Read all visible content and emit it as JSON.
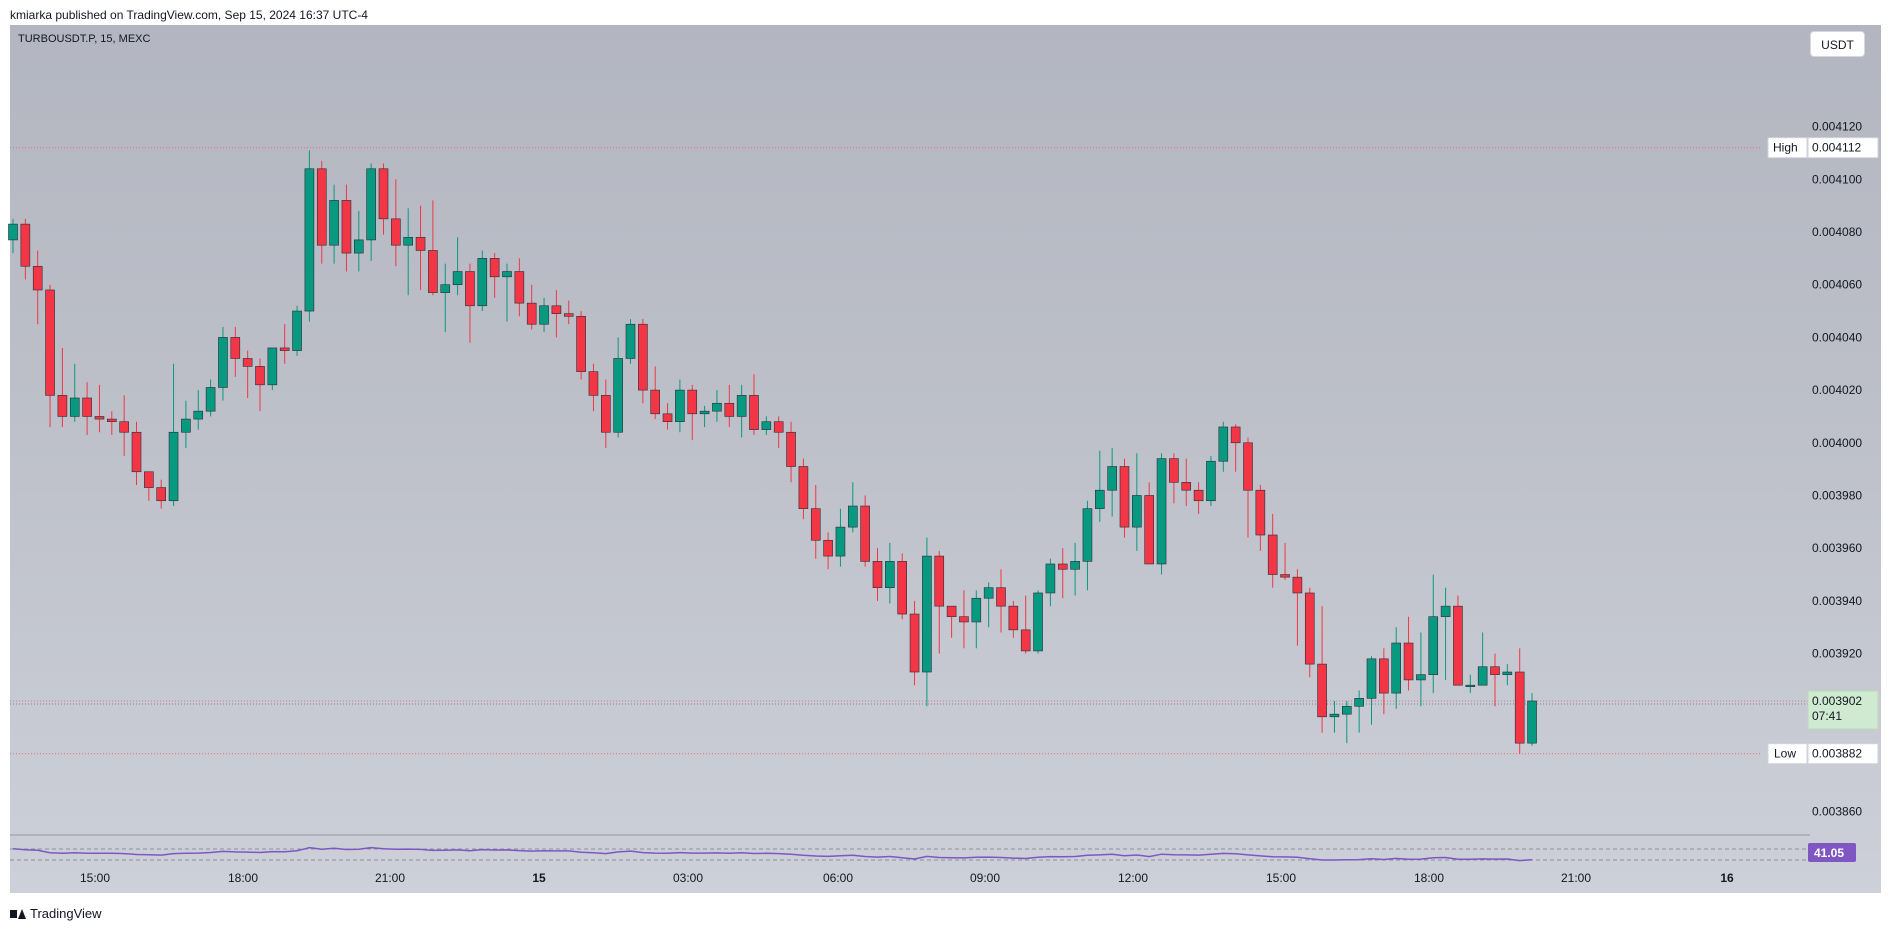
{
  "header": {
    "published": "kmiarka published on TradingView.com, Sep 15, 2024 16:37 UTC-4"
  },
  "symbol": {
    "label": "TURBOUSDT.P, 15, MEXC"
  },
  "currency": {
    "label": "USDT"
  },
  "colors": {
    "up": "#089981",
    "down": "#f23645",
    "rsi": "#7e57c2"
  },
  "footer": {
    "brand": "TradingView"
  },
  "chart_data": {
    "type": "candlestick",
    "interval": "15",
    "x_ticks": [
      "15:00",
      "18:00",
      "21:00",
      "15",
      "03:00",
      "06:00",
      "09:00",
      "12:00",
      "15:00",
      "18:00",
      "21:00",
      "16"
    ],
    "y_ticks": [
      "0.004120",
      "0.004100",
      "0.004080",
      "0.004060",
      "0.004040",
      "0.004020",
      "0.004000",
      "0.003980",
      "0.003960",
      "0.003940",
      "0.003920",
      "0.003860"
    ],
    "ylim": [
      0.00385,
      0.004132
    ],
    "high": {
      "label": "High",
      "value": "0.004112"
    },
    "low": {
      "label": "Low",
      "value": "0.003882"
    },
    "last": {
      "value": "0.003902",
      "countdown": "07:41"
    },
    "rsi": {
      "value": "41.05"
    },
    "candles": [
      [
        0.004077,
        0.004083,
        0.004085,
        0.004072
      ],
      [
        0.004083,
        0.004067,
        0.004085,
        0.004062
      ],
      [
        0.004067,
        0.004058,
        0.004073,
        0.004045
      ],
      [
        0.004058,
        0.004018,
        0.00406,
        0.004006
      ],
      [
        0.004018,
        0.00401,
        0.004036,
        0.004006
      ],
      [
        0.00401,
        0.004017,
        0.00403,
        0.004008
      ],
      [
        0.004017,
        0.00401,
        0.004023,
        0.004003
      ],
      [
        0.00401,
        0.004009,
        0.004022,
        0.004004
      ],
      [
        0.004009,
        0.004008,
        0.004012,
        0.004003
      ],
      [
        0.004008,
        0.004004,
        0.004018,
        0.003995
      ],
      [
        0.004004,
        0.003989,
        0.004008,
        0.003984
      ],
      [
        0.003989,
        0.003983,
        0.003988,
        0.003978
      ],
      [
        0.003983,
        0.003978,
        0.003986,
        0.003975
      ],
      [
        0.003978,
        0.004004,
        0.00403,
        0.003976
      ],
      [
        0.004004,
        0.004009,
        0.004016,
        0.003998
      ],
      [
        0.004009,
        0.004012,
        0.00402,
        0.004005
      ],
      [
        0.004012,
        0.004021,
        0.004024,
        0.00401
      ],
      [
        0.004021,
        0.00404,
        0.004044,
        0.004016
      ],
      [
        0.00404,
        0.004032,
        0.004044,
        0.004025
      ],
      [
        0.004032,
        0.004029,
        0.004035,
        0.004017
      ],
      [
        0.004029,
        0.004022,
        0.004032,
        0.004012
      ],
      [
        0.004022,
        0.004036,
        0.004036,
        0.00402
      ],
      [
        0.004036,
        0.004035,
        0.004045,
        0.00403
      ],
      [
        0.004035,
        0.00405,
        0.004052,
        0.004033
      ],
      [
        0.00405,
        0.004104,
        0.004111,
        0.004046
      ],
      [
        0.004104,
        0.004075,
        0.004107,
        0.004068
      ],
      [
        0.004075,
        0.004092,
        0.004098,
        0.004068
      ],
      [
        0.004092,
        0.004072,
        0.004098,
        0.004065
      ],
      [
        0.004072,
        0.004077,
        0.004088,
        0.004065
      ],
      [
        0.004077,
        0.004104,
        0.004106,
        0.004069
      ],
      [
        0.004104,
        0.004085,
        0.004106,
        0.004079
      ],
      [
        0.004085,
        0.004075,
        0.0041,
        0.004067
      ],
      [
        0.004075,
        0.004078,
        0.004089,
        0.004056
      ],
      [
        0.004078,
        0.004073,
        0.00409,
        0.004058
      ],
      [
        0.004073,
        0.004057,
        0.004092,
        0.004056
      ],
      [
        0.004057,
        0.00406,
        0.004068,
        0.004042
      ],
      [
        0.00406,
        0.004065,
        0.004078,
        0.004056
      ],
      [
        0.004065,
        0.004052,
        0.004068,
        0.004038
      ],
      [
        0.004052,
        0.00407,
        0.004073,
        0.00405
      ],
      [
        0.00407,
        0.004063,
        0.004072,
        0.004055
      ],
      [
        0.004063,
        0.004065,
        0.004068,
        0.004046
      ],
      [
        0.004065,
        0.004053,
        0.00407,
        0.004048
      ],
      [
        0.004053,
        0.004045,
        0.00406,
        0.004043
      ],
      [
        0.004045,
        0.004052,
        0.004055,
        0.004042
      ],
      [
        0.004052,
        0.004049,
        0.004058,
        0.00404
      ],
      [
        0.004049,
        0.004048,
        0.004054,
        0.004045
      ],
      [
        0.004048,
        0.004027,
        0.00405,
        0.004024
      ],
      [
        0.004027,
        0.004018,
        0.00403,
        0.004012
      ],
      [
        0.004018,
        0.004004,
        0.004024,
        0.003998
      ],
      [
        0.004004,
        0.004032,
        0.00404,
        0.004002
      ],
      [
        0.004032,
        0.004045,
        0.004047,
        0.00403
      ],
      [
        0.004045,
        0.00402,
        0.004047,
        0.004015
      ],
      [
        0.00402,
        0.004011,
        0.004029,
        0.004009
      ],
      [
        0.004011,
        0.004008,
        0.004015,
        0.004005
      ],
      [
        0.004008,
        0.00402,
        0.004024,
        0.004004
      ],
      [
        0.00402,
        0.004011,
        0.004022,
        0.004001
      ],
      [
        0.004011,
        0.004012,
        0.004014,
        0.004006
      ],
      [
        0.004012,
        0.004015,
        0.00402,
        0.004008
      ],
      [
        0.004015,
        0.00401,
        0.004022,
        0.004006
      ],
      [
        0.00401,
        0.004018,
        0.004022,
        0.004002
      ],
      [
        0.004018,
        0.004005,
        0.004026,
        0.004003
      ],
      [
        0.004005,
        0.004008,
        0.00401,
        0.004003
      ],
      [
        0.004008,
        0.004004,
        0.00401,
        0.003998
      ],
      [
        0.004004,
        0.003991,
        0.004008,
        0.003985
      ],
      [
        0.003991,
        0.003975,
        0.003994,
        0.003971
      ],
      [
        0.003975,
        0.003963,
        0.003984,
        0.003956
      ],
      [
        0.003963,
        0.003957,
        0.003966,
        0.003952
      ],
      [
        0.003957,
        0.003968,
        0.003975,
        0.003953
      ],
      [
        0.003968,
        0.003976,
        0.003985,
        0.003966
      ],
      [
        0.003976,
        0.003955,
        0.00398,
        0.003953
      ],
      [
        0.003955,
        0.003945,
        0.00396,
        0.00394
      ],
      [
        0.003945,
        0.003955,
        0.003962,
        0.003939
      ],
      [
        0.003955,
        0.003935,
        0.003958,
        0.003933
      ],
      [
        0.003935,
        0.003913,
        0.00394,
        0.003908
      ],
      [
        0.003913,
        0.003957,
        0.003964,
        0.0039
      ],
      [
        0.003957,
        0.003938,
        0.003959,
        0.00392
      ],
      [
        0.003938,
        0.003934,
        0.003938,
        0.003926
      ],
      [
        0.003934,
        0.003932,
        0.003944,
        0.003922
      ],
      [
        0.003932,
        0.003941,
        0.003944,
        0.003922
      ],
      [
        0.003941,
        0.003945,
        0.003947,
        0.00393
      ],
      [
        0.003945,
        0.003938,
        0.003952,
        0.003928
      ],
      [
        0.003938,
        0.003929,
        0.00394,
        0.003926
      ],
      [
        0.003929,
        0.003921,
        0.003942,
        0.00392
      ],
      [
        0.003921,
        0.003943,
        0.003944,
        0.00392
      ],
      [
        0.003943,
        0.003954,
        0.003956,
        0.003938
      ],
      [
        0.003954,
        0.003952,
        0.00396,
        0.003941
      ],
      [
        0.003952,
        0.003955,
        0.003962,
        0.003942
      ],
      [
        0.003955,
        0.003975,
        0.003978,
        0.003944
      ],
      [
        0.003975,
        0.003982,
        0.003997,
        0.00397
      ],
      [
        0.003982,
        0.003991,
        0.003998,
        0.003972
      ],
      [
        0.003991,
        0.003968,
        0.003994,
        0.003964
      ],
      [
        0.003968,
        0.00398,
        0.003996,
        0.003959
      ],
      [
        0.00398,
        0.003954,
        0.003985,
        0.003956
      ],
      [
        0.003954,
        0.003994,
        0.003996,
        0.00395
      ],
      [
        0.003994,
        0.003985,
        0.003996,
        0.003977
      ],
      [
        0.003985,
        0.003982,
        0.003994,
        0.003976
      ],
      [
        0.003982,
        0.003978,
        0.003985,
        0.003973
      ],
      [
        0.003978,
        0.003993,
        0.003995,
        0.003976
      ],
      [
        0.003993,
        0.004006,
        0.004008,
        0.003989
      ],
      [
        0.004006,
        0.004,
        0.004007,
        0.003989
      ],
      [
        0.004,
        0.003982,
        0.004002,
        0.003964
      ],
      [
        0.003982,
        0.003965,
        0.003984,
        0.003959
      ],
      [
        0.003965,
        0.00395,
        0.003973,
        0.003945
      ],
      [
        0.00395,
        0.003949,
        0.003962,
        0.003948
      ],
      [
        0.003949,
        0.003943,
        0.003952,
        0.003923
      ],
      [
        0.003943,
        0.003916,
        0.003945,
        0.003911
      ],
      [
        0.003916,
        0.003896,
        0.003938,
        0.00389
      ],
      [
        0.003896,
        0.003897,
        0.003902,
        0.00389
      ],
      [
        0.003897,
        0.0039,
        0.003902,
        0.003886
      ],
      [
        0.0039,
        0.003903,
        0.003906,
        0.00389
      ],
      [
        0.003903,
        0.003918,
        0.003919,
        0.003893
      ],
      [
        0.003918,
        0.003905,
        0.003922,
        0.003897
      ],
      [
        0.003905,
        0.003924,
        0.00393,
        0.003899
      ],
      [
        0.003924,
        0.00391,
        0.003934,
        0.003906
      ],
      [
        0.00391,
        0.003912,
        0.003928,
        0.0039
      ],
      [
        0.003912,
        0.003934,
        0.00395,
        0.003905
      ],
      [
        0.003934,
        0.003938,
        0.003945,
        0.00391
      ],
      [
        0.003938,
        0.003908,
        0.003942,
        0.00391
      ],
      [
        0.003908,
        0.003908,
        0.003912,
        0.003905
      ],
      [
        0.003908,
        0.003915,
        0.003928,
        0.00391
      ],
      [
        0.003915,
        0.003912,
        0.00392,
        0.0039
      ],
      [
        0.003912,
        0.003913,
        0.003916,
        0.003908
      ],
      [
        0.003913,
        0.003886,
        0.003922,
        0.003882
      ],
      [
        0.003886,
        0.003902,
        0.003905,
        0.003885
      ]
    ]
  }
}
